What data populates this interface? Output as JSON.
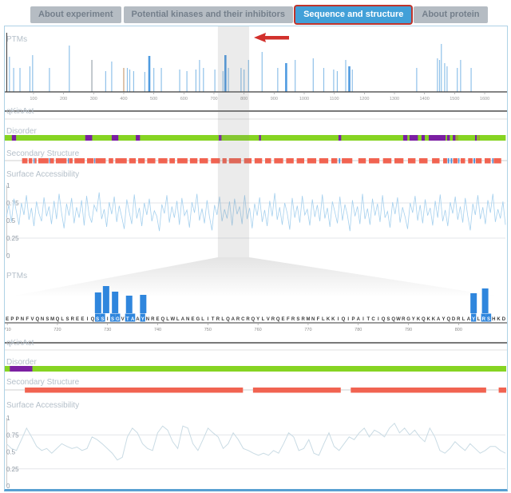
{
  "tabs": [
    {
      "label": "About experiment",
      "active": false
    },
    {
      "label": "Potential kinases and their inhibitors",
      "active": false
    },
    {
      "label": "Sequence and structure",
      "active": true
    },
    {
      "label": "About protein",
      "active": false
    }
  ],
  "colors": {
    "b": "#8fc1e9",
    "m": "#4f9be0",
    "g": "#9aa5ad",
    "t": "#c9a175",
    "axis": "#3a3a3a",
    "grid": "#e3e6e9",
    "green": "#86d422",
    "purple": "#7b1fa2",
    "olive": "#9aa82c",
    "red": "#f16351",
    "blue_seg": "#4a90d9",
    "surface_top": "#a5d0ee",
    "surface_bottom": "#c9dbe4",
    "bar_blue": "#2f86dd",
    "band": "rgba(130,130,130,0.16)",
    "arrow_red": "#d2302c",
    "dark_line": "#4d4d4d",
    "light_line": "#e0e0e0",
    "sec_line": "#cfcfcf"
  },
  "overview": {
    "highlight_residues": [
      713,
      817
    ],
    "ptms": {
      "label": "PTMs",
      "axis_ticks": [
        100,
        200,
        300,
        400,
        500,
        600,
        700,
        800,
        900,
        1000,
        1100,
        1200,
        1300,
        1400,
        1500,
        1600
      ],
      "needles": [
        [
          20,
          44,
          "b"
        ],
        [
          34,
          30,
          "b"
        ],
        [
          55,
          30,
          "b"
        ],
        [
          88,
          32,
          "b"
        ],
        [
          97,
          46,
          "b"
        ],
        [
          153,
          30,
          "b"
        ],
        [
          219,
          58,
          "b"
        ],
        [
          294,
          40,
          "g"
        ],
        [
          340,
          26,
          "b"
        ],
        [
          360,
          38,
          "b"
        ],
        [
          400,
          30,
          "t"
        ],
        [
          412,
          30,
          "b"
        ],
        [
          420,
          28,
          "b"
        ],
        [
          433,
          26,
          "b"
        ],
        [
          470,
          25,
          "b"
        ],
        [
          485,
          45,
          "m"
        ],
        [
          500,
          30,
          "b"
        ],
        [
          525,
          30,
          "b"
        ],
        [
          586,
          28,
          "b"
        ],
        [
          610,
          26,
          "b"
        ],
        [
          640,
          28,
          "b"
        ],
        [
          652,
          40,
          "b"
        ],
        [
          665,
          30,
          "b"
        ],
        [
          703,
          28,
          "b"
        ],
        [
          730,
          26,
          "b"
        ],
        [
          738,
          46,
          "m"
        ],
        [
          748,
          30,
          "b"
        ],
        [
          790,
          30,
          "b"
        ],
        [
          800,
          28,
          "b"
        ],
        [
          815,
          40,
          "b"
        ],
        [
          860,
          50,
          "b"
        ],
        [
          912,
          30,
          "b"
        ],
        [
          940,
          36,
          "m"
        ],
        [
          970,
          40,
          "b"
        ],
        [
          1030,
          42,
          "b"
        ],
        [
          1065,
          30,
          "b"
        ],
        [
          1098,
          28,
          "b"
        ],
        [
          1110,
          26,
          "b"
        ],
        [
          1138,
          40,
          "b"
        ],
        [
          1150,
          32,
          "m"
        ],
        [
          1160,
          28,
          "b"
        ],
        [
          1374,
          30,
          "b"
        ],
        [
          1443,
          42,
          "b"
        ],
        [
          1450,
          40,
          "b"
        ],
        [
          1456,
          60,
          "b"
        ],
        [
          1467,
          36,
          "b"
        ],
        [
          1475,
          32,
          "b"
        ],
        [
          1509,
          30,
          "b"
        ],
        [
          1520,
          40,
          "b"
        ],
        [
          1555,
          30,
          "b"
        ]
      ]
    },
    "qkinact": {
      "label": "qKinAct"
    },
    "disorder": {
      "label": "Disorder",
      "range": [
        0,
        1670
      ],
      "purple": [
        [
          28,
          42
        ],
        [
          272,
          295
        ],
        [
          360,
          382
        ],
        [
          440,
          454
        ],
        [
          716,
          725
        ],
        [
          850,
          856
        ],
        [
          1114,
          1123
        ],
        [
          1329,
          1343
        ],
        [
          1350,
          1378
        ],
        [
          1390,
          1401
        ],
        [
          1414,
          1470
        ],
        [
          1475,
          1484
        ],
        [
          1494,
          1503
        ],
        [
          1568,
          1574
        ]
      ],
      "olive": [
        [
          1505,
          1512
        ],
        [
          1578,
          1584
        ]
      ]
    },
    "secondary": {
      "label": "Secondary Structure",
      "red": [
        [
          62,
          80
        ],
        [
          84,
          96
        ],
        [
          104,
          110
        ],
        [
          116,
          150
        ],
        [
          155,
          168
        ],
        [
          174,
          210
        ],
        [
          218,
          230
        ],
        [
          236,
          270
        ],
        [
          278,
          300
        ],
        [
          306,
          340
        ],
        [
          350,
          365
        ],
        [
          372,
          410
        ],
        [
          418,
          440
        ],
        [
          448,
          470
        ],
        [
          478,
          505
        ],
        [
          515,
          545
        ],
        [
          552,
          570
        ],
        [
          578,
          612
        ],
        [
          620,
          645
        ],
        [
          652,
          680
        ],
        [
          690,
          720
        ],
        [
          728,
          742
        ],
        [
          750,
          790
        ],
        [
          800,
          825
        ],
        [
          835,
          860
        ],
        [
          870,
          890
        ],
        [
          900,
          930
        ],
        [
          940,
          965
        ],
        [
          975,
          1000
        ],
        [
          1010,
          1040
        ],
        [
          1050,
          1080
        ],
        [
          1090,
          1110
        ],
        [
          1125,
          1160
        ],
        [
          1180,
          1205
        ],
        [
          1215,
          1250
        ],
        [
          1262,
          1290
        ],
        [
          1300,
          1330
        ],
        [
          1345,
          1370
        ],
        [
          1382,
          1410
        ],
        [
          1425,
          1450
        ],
        [
          1462,
          1475
        ],
        [
          1495,
          1510
        ],
        [
          1520,
          1535
        ],
        [
          1545,
          1560
        ],
        [
          1570,
          1590
        ],
        [
          1600,
          1620
        ],
        [
          1630,
          1655
        ]
      ],
      "blue": [
        [
          100,
          103
        ],
        [
          152,
          155
        ],
        [
          214,
          217
        ],
        [
          302,
          305
        ],
        [
          1115,
          1120
        ],
        [
          1477,
          1482
        ],
        [
          1487,
          1492
        ],
        [
          1512,
          1516
        ],
        [
          1563,
          1568
        ],
        [
          1625,
          1629
        ]
      ]
    },
    "surface": {
      "label": "Surface Accessibility",
      "yticks": [
        "1",
        "0.75",
        "0.5",
        "0.25",
        "0"
      ],
      "values": [
        0.55,
        0.72,
        0.48,
        0.81,
        0.62,
        0.44,
        0.75,
        0.58,
        0.86,
        0.51,
        0.68,
        0.42,
        0.77,
        0.6,
        0.49,
        0.83,
        0.56,
        0.7,
        0.45,
        0.78,
        0.52,
        0.88,
        0.61,
        0.39,
        0.74,
        0.57,
        0.82,
        0.46,
        0.69,
        0.54,
        0.79,
        0.43,
        0.85,
        0.58,
        0.47,
        0.72,
        0.63,
        0.9,
        0.52,
        0.66,
        0.41,
        0.76,
        0.59,
        0.84,
        0.48,
        0.71,
        0.55,
        0.38,
        0.8,
        0.62,
        0.45,
        0.87,
        0.53,
        0.68,
        0.42,
        0.75,
        0.58,
        0.81,
        0.49,
        0.64,
        0.56,
        0.35,
        0.73,
        0.6,
        0.86,
        0.47,
        0.7,
        0.54,
        0.78,
        0.44,
        0.82,
        0.57,
        0.65,
        0.4,
        0.76,
        0.61,
        0.88,
        0.5,
        0.67,
        0.46,
        0.79,
        0.55,
        0.36,
        0.72,
        0.58,
        0.84,
        0.49,
        0.66,
        0.53,
        0.77,
        0.43,
        0.81,
        0.59,
        0.7,
        0.45,
        0.86,
        0.52,
        0.68,
        0.39,
        0.74,
        0.57,
        0.83,
        0.48,
        0.65,
        0.42,
        0.78,
        0.56,
        0.89,
        0.51,
        0.69,
        0.44,
        0.75,
        0.6,
        0.37,
        0.82,
        0.54,
        0.71,
        0.47,
        0.85,
        0.58,
        0.66,
        0.43,
        0.8,
        0.55,
        0.72,
        0.49,
        0.87,
        0.53,
        0.68,
        0.41,
        0.77,
        0.62,
        0.46,
        0.84,
        0.5,
        0.73,
        0.58,
        0.35,
        0.79,
        0.56,
        0.7,
        0.45,
        0.88,
        0.52,
        0.67,
        0.44,
        0.81,
        0.57,
        0.74,
        0.48,
        0.86,
        0.54,
        0.63,
        0.4,
        0.76,
        0.59,
        0.83,
        0.47,
        0.69,
        0.55,
        0.38,
        0.75,
        0.61,
        0.85,
        0.5,
        0.72,
        0.46,
        0.8,
        0.57,
        0.68,
        0.43,
        0.78,
        0.54,
        0.87,
        0.49,
        0.65,
        0.42,
        0.76,
        0.6,
        0.84,
        0.51,
        0.7,
        0.47,
        0.82,
        0.56,
        0.36,
        0.74,
        0.58,
        0.86,
        0.52,
        0.69,
        0.45,
        0.79,
        0.61,
        0.88,
        0.48,
        0.66,
        0.53,
        0.77,
        0.44
      ]
    }
  },
  "detail": {
    "ptms": {
      "label": "PTMs",
      "bars": [
        [
          18.1,
          26
        ],
        [
          19.7,
          34
        ],
        [
          21.5,
          27
        ],
        [
          24.3,
          22
        ],
        [
          27.1,
          23
        ],
        [
          93.0,
          25
        ],
        [
          95.3,
          31
        ]
      ]
    },
    "sequence": {
      "residues": "EPPNFVQNSMQLSREEIQSSISGVTAAYNREQLWLANEGLITRLQARCRQYLVRQEFRSRMNFLKKIQIPAITCIQSQWRGYKQKKAYQDRLAYLRSHKD",
      "start": 710,
      "ticks": [
        710,
        720,
        730,
        740,
        750,
        760,
        770,
        780,
        790,
        800
      ],
      "highlighted": [
        18,
        19,
        21,
        22,
        24,
        25,
        27,
        93,
        95,
        96
      ]
    },
    "qkinact": {
      "label": "qKinAct"
    },
    "disorder": {
      "label": "Disorder",
      "range": [
        710,
        810
      ],
      "purple": [
        [
          711,
          715.5
        ]
      ]
    },
    "secondary": {
      "label": "Secondary Structure",
      "red": [
        [
          714,
          757.5
        ],
        [
          759.5,
          777
        ],
        [
          779,
          806
        ],
        [
          808.5,
          810
        ]
      ]
    },
    "surface": {
      "label": "Surface Accessibility",
      "yticks": [
        "1",
        "0.75",
        "0.5",
        "0.25",
        "0"
      ],
      "values": [
        0.62,
        0.55,
        0.52,
        0.68,
        0.85,
        0.72,
        0.58,
        0.52,
        0.55,
        0.48,
        0.55,
        0.62,
        0.58,
        0.55,
        0.57,
        0.52,
        0.55,
        0.72,
        0.68,
        0.62,
        0.55,
        0.48,
        0.38,
        0.42,
        0.72,
        0.85,
        0.78,
        0.62,
        0.55,
        0.52,
        0.78,
        0.88,
        0.82,
        0.65,
        0.55,
        0.88,
        0.85,
        0.62,
        0.52,
        0.68,
        0.85,
        0.78,
        0.72,
        0.55,
        0.62,
        0.78,
        0.68,
        0.55,
        0.52,
        0.48,
        0.45,
        0.48,
        0.45,
        0.52,
        0.48,
        0.62,
        0.78,
        0.72,
        0.52,
        0.55,
        0.68,
        0.48,
        0.45,
        0.62,
        0.78,
        0.58,
        0.52,
        0.62,
        0.72,
        0.68,
        0.78,
        0.85,
        0.72,
        0.82,
        0.78,
        0.72,
        0.85,
        0.92,
        0.78,
        0.85,
        0.75,
        0.82,
        0.72,
        0.65,
        0.85,
        0.72,
        0.52,
        0.48,
        0.55,
        0.65,
        0.58,
        0.52,
        0.62,
        0.55,
        0.48,
        0.52,
        0.58,
        0.58,
        0.52,
        0.48
      ]
    }
  },
  "annotation": {
    "arrow": "red-left-arrow"
  }
}
